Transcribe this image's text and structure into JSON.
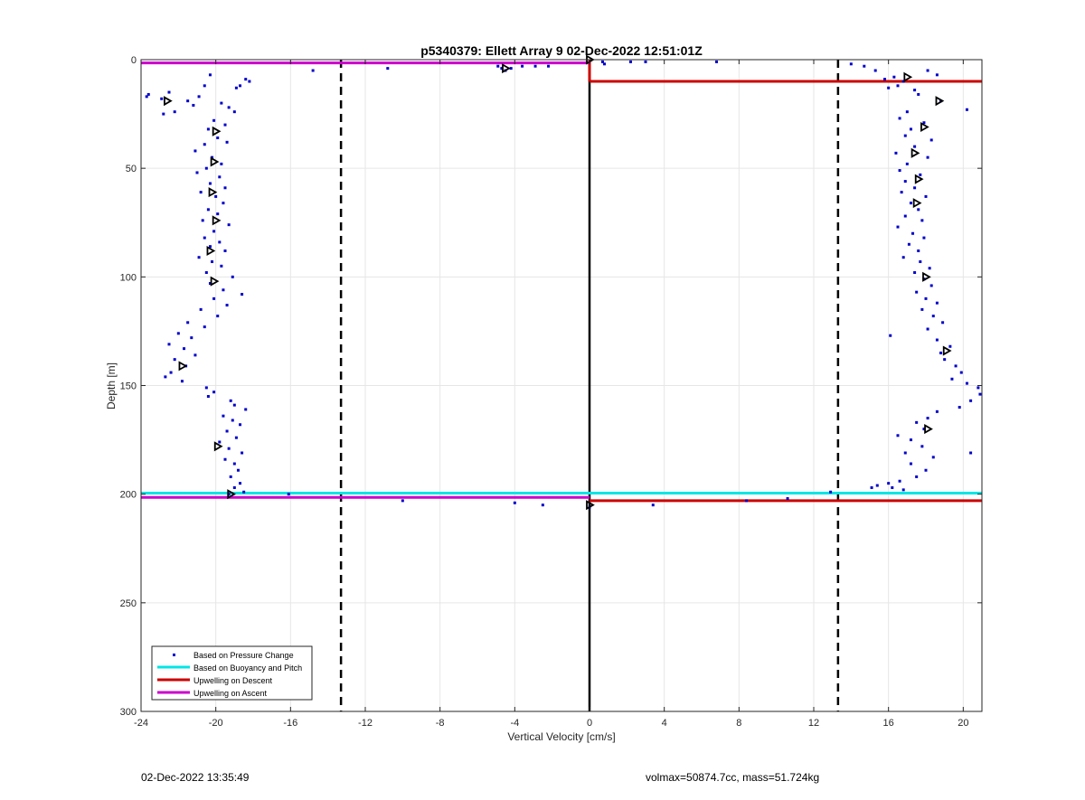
{
  "chart_data": {
    "type": "scatter",
    "title": "p5340379: Ellett Array 9 02-Dec-2022 12:51:01Z",
    "xlabel": "Vertical Velocity [cm/s]",
    "ylabel": "Depth [m]",
    "xlim": [
      -24,
      21
    ],
    "ylim": [
      0,
      300
    ],
    "y_reversed": true,
    "grid": true,
    "x_ticks": [
      -24,
      -20,
      -16,
      -12,
      -8,
      -4,
      0,
      4,
      8,
      12,
      16,
      20
    ],
    "y_ticks": [
      0,
      50,
      100,
      150,
      200,
      250,
      300
    ],
    "legend_position": "bottom-left",
    "colors": {
      "pressure": "#0000cc",
      "buoyancy": "#00e5e5",
      "descent": "#cc0000",
      "ascent": "#cc00cc",
      "axis": "#262626",
      "grid": "#e6e6e6"
    },
    "reference_lines": {
      "dashed_x": [
        -13.3,
        13.3
      ],
      "solid_x": 0
    },
    "series": [
      {
        "name": "Based on Pressure Change",
        "marker": "dot",
        "color": "#0000cc",
        "points": [
          [
            -23.6,
            16
          ],
          [
            -23.7,
            17
          ],
          [
            -22.9,
            18
          ],
          [
            -22.5,
            15
          ],
          [
            -22.2,
            24
          ],
          [
            -22.8,
            25
          ],
          [
            -21.5,
            19
          ],
          [
            -21.2,
            21
          ],
          [
            -20.9,
            17
          ],
          [
            -20.6,
            12
          ],
          [
            -20.3,
            7
          ],
          [
            -19.7,
            20
          ],
          [
            -19.3,
            22
          ],
          [
            -19.0,
            24
          ],
          [
            -18.7,
            12
          ],
          [
            -18.4,
            9
          ],
          [
            -18.2,
            10
          ],
          [
            -18.9,
            13
          ],
          [
            -20.1,
            28
          ],
          [
            -19.5,
            30
          ],
          [
            -20.4,
            32
          ],
          [
            -19.9,
            36
          ],
          [
            -20.6,
            39
          ],
          [
            -19.4,
            38
          ],
          [
            -21.1,
            42
          ],
          [
            -20.2,
            45
          ],
          [
            -19.7,
            48
          ],
          [
            -20.5,
            50
          ],
          [
            -21.0,
            52
          ],
          [
            -19.8,
            54
          ],
          [
            -20.3,
            57
          ],
          [
            -19.5,
            59
          ],
          [
            -20.8,
            61
          ],
          [
            -20.0,
            63
          ],
          [
            -19.6,
            66
          ],
          [
            -20.4,
            69
          ],
          [
            -19.9,
            71
          ],
          [
            -20.7,
            74
          ],
          [
            -19.3,
            76
          ],
          [
            -20.1,
            79
          ],
          [
            -20.6,
            82
          ],
          [
            -19.8,
            84
          ],
          [
            -20.3,
            86
          ],
          [
            -19.5,
            88
          ],
          [
            -20.9,
            91
          ],
          [
            -20.2,
            93
          ],
          [
            -19.7,
            95
          ],
          [
            -20.5,
            98
          ],
          [
            -19.1,
            100
          ],
          [
            -20.3,
            103
          ],
          [
            -19.6,
            106
          ],
          [
            -18.6,
            108
          ],
          [
            -20.1,
            110
          ],
          [
            -19.4,
            113
          ],
          [
            -20.8,
            115
          ],
          [
            -19.9,
            118
          ],
          [
            -21.5,
            121
          ],
          [
            -20.6,
            123
          ],
          [
            -22.0,
            126
          ],
          [
            -21.3,
            128
          ],
          [
            -22.5,
            131
          ],
          [
            -21.7,
            133
          ],
          [
            -21.1,
            136
          ],
          [
            -22.2,
            138
          ],
          [
            -21.6,
            141
          ],
          [
            -22.4,
            144
          ],
          [
            -22.7,
            146
          ],
          [
            -21.8,
            148
          ],
          [
            -20.5,
            151
          ],
          [
            -20.1,
            153
          ],
          [
            -20.4,
            155
          ],
          [
            -19.2,
            157
          ],
          [
            -19.0,
            159
          ],
          [
            -18.4,
            161
          ],
          [
            -19.6,
            164
          ],
          [
            -19.1,
            166
          ],
          [
            -18.7,
            168
          ],
          [
            -19.4,
            171
          ],
          [
            -18.9,
            174
          ],
          [
            -19.8,
            176
          ],
          [
            -19.3,
            179
          ],
          [
            -18.6,
            181
          ],
          [
            -19.5,
            184
          ],
          [
            -19.0,
            186
          ],
          [
            -18.8,
            189
          ],
          [
            -19.2,
            192
          ],
          [
            -18.7,
            195
          ],
          [
            -19.0,
            197
          ],
          [
            -18.5,
            199
          ],
          [
            -19.3,
            200
          ],
          [
            -16.1,
            200
          ],
          [
            -14.8,
            5
          ],
          [
            -10.8,
            4
          ],
          [
            -4.9,
            3
          ],
          [
            -4.7,
            4
          ],
          [
            -4.5,
            5
          ],
          [
            -4.2,
            4
          ],
          [
            -3.6,
            3
          ],
          [
            -2.9,
            3
          ],
          [
            -2.2,
            3
          ],
          [
            0.7,
            1
          ],
          [
            0.8,
            2
          ],
          [
            2.2,
            1
          ],
          [
            3.0,
            1
          ],
          [
            6.8,
            1
          ],
          [
            -10.0,
            203
          ],
          [
            -4.0,
            204
          ],
          [
            -2.5,
            205
          ],
          [
            0.0,
            206
          ],
          [
            3.4,
            205
          ],
          [
            8.4,
            203
          ],
          [
            10.6,
            202
          ],
          [
            12.9,
            199
          ],
          [
            14.0,
            2
          ],
          [
            14.7,
            3
          ],
          [
            15.3,
            5
          ],
          [
            15.8,
            9
          ],
          [
            16.3,
            8
          ],
          [
            16.0,
            13
          ],
          [
            16.5,
            12
          ],
          [
            16.8,
            10
          ],
          [
            17.4,
            14
          ],
          [
            17.6,
            16
          ],
          [
            18.1,
            5
          ],
          [
            18.6,
            7
          ],
          [
            18.8,
            19
          ],
          [
            20.2,
            23
          ],
          [
            17.0,
            24
          ],
          [
            16.6,
            27
          ],
          [
            17.9,
            29
          ],
          [
            17.2,
            32
          ],
          [
            16.9,
            35
          ],
          [
            18.3,
            37
          ],
          [
            17.4,
            40
          ],
          [
            16.4,
            43
          ],
          [
            18.1,
            45
          ],
          [
            17.0,
            48
          ],
          [
            16.6,
            51
          ],
          [
            17.7,
            53
          ],
          [
            16.9,
            56
          ],
          [
            17.4,
            59
          ],
          [
            16.7,
            61
          ],
          [
            18.0,
            63
          ],
          [
            17.2,
            66
          ],
          [
            17.6,
            69
          ],
          [
            16.9,
            72
          ],
          [
            17.8,
            74
          ],
          [
            16.5,
            77
          ],
          [
            17.3,
            80
          ],
          [
            17.9,
            82
          ],
          [
            17.1,
            85
          ],
          [
            17.6,
            88
          ],
          [
            16.8,
            91
          ],
          [
            17.7,
            93
          ],
          [
            18.2,
            96
          ],
          [
            17.4,
            98
          ],
          [
            17.9,
            101
          ],
          [
            18.3,
            104
          ],
          [
            17.5,
            107
          ],
          [
            18.0,
            110
          ],
          [
            18.6,
            112
          ],
          [
            17.8,
            115
          ],
          [
            18.4,
            118
          ],
          [
            18.9,
            121
          ],
          [
            18.1,
            124
          ],
          [
            16.1,
            127
          ],
          [
            18.6,
            129
          ],
          [
            19.3,
            132
          ],
          [
            18.8,
            135
          ],
          [
            19.0,
            138
          ],
          [
            19.6,
            141
          ],
          [
            19.9,
            144
          ],
          [
            19.4,
            147
          ],
          [
            20.2,
            149
          ],
          [
            20.8,
            151
          ],
          [
            20.9,
            154
          ],
          [
            20.4,
            157
          ],
          [
            19.8,
            160
          ],
          [
            18.6,
            162
          ],
          [
            18.1,
            165
          ],
          [
            17.5,
            167
          ],
          [
            17.9,
            170
          ],
          [
            16.5,
            173
          ],
          [
            17.2,
            175
          ],
          [
            17.8,
            178
          ],
          [
            16.9,
            181
          ],
          [
            20.4,
            181
          ],
          [
            18.4,
            183
          ],
          [
            17.2,
            186
          ],
          [
            18.0,
            189
          ],
          [
            17.5,
            192
          ],
          [
            16.6,
            194
          ],
          [
            15.4,
            196
          ],
          [
            15.1,
            197
          ],
          [
            16.0,
            195
          ],
          [
            16.2,
            197
          ],
          [
            16.8,
            198
          ]
        ]
      },
      {
        "name": "Based on Buoyancy and Pitch",
        "marker": "line",
        "color": "#00e5e5",
        "segments": [
          [
            [
              -24,
              199.5
            ],
            [
              21,
              199.5
            ]
          ]
        ]
      },
      {
        "name": "Upwelling on Descent",
        "marker": "line",
        "color": "#cc0000",
        "segments": [
          [
            [
              0,
              10
            ],
            [
              21,
              10
            ]
          ],
          [
            [
              0,
              0
            ],
            [
              0,
              10
            ]
          ],
          [
            [
              0,
              203
            ],
            [
              21,
              203
            ]
          ]
        ]
      },
      {
        "name": "Upwelling on Ascent",
        "marker": "line",
        "color": "#cc00cc",
        "segments": [
          [
            [
              -24,
              1.5
            ],
            [
              0,
              1.5
            ]
          ],
          [
            [
              -24,
              201.5
            ],
            [
              0,
              201.5
            ]
          ]
        ]
      }
    ],
    "triangle_markers": [
      [
        -22.6,
        19
      ],
      [
        -20.0,
        33
      ],
      [
        -20.1,
        47
      ],
      [
        -20.2,
        61
      ],
      [
        -20.0,
        74
      ],
      [
        -20.3,
        88
      ],
      [
        -20.1,
        102
      ],
      [
        -21.8,
        141
      ],
      [
        -19.9,
        178
      ],
      [
        -19.2,
        200
      ],
      [
        -4.5,
        4
      ],
      [
        0.0,
        0
      ],
      [
        0.0,
        205
      ],
      [
        17.0,
        8
      ],
      [
        18.7,
        19
      ],
      [
        17.9,
        31
      ],
      [
        17.4,
        43
      ],
      [
        17.6,
        55
      ],
      [
        17.5,
        66
      ],
      [
        18.0,
        100
      ],
      [
        19.1,
        134
      ],
      [
        18.1,
        170
      ]
    ]
  },
  "footer": {
    "timestamp": "02-Dec-2022 13:35:49",
    "stats": "volmax=50874.7cc, mass=51.724kg"
  }
}
